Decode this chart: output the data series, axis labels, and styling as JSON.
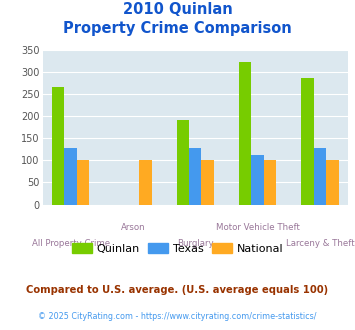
{
  "title_line1": "2010 Quinlan",
  "title_line2": "Property Crime Comparison",
  "categories": [
    "All Property Crime",
    "Arson",
    "Burglary",
    "Motor Vehicle Theft",
    "Larceny & Theft"
  ],
  "series": {
    "Quinlan": [
      265,
      0,
      192,
      322,
      285
    ],
    "Texas": [
      128,
      0,
      128,
      113,
      128
    ],
    "National": [
      100,
      100,
      100,
      100,
      100
    ]
  },
  "colors": {
    "Quinlan": "#77cc00",
    "Texas": "#4499ee",
    "National": "#ffaa22"
  },
  "ylim": [
    0,
    350
  ],
  "yticks": [
    0,
    50,
    100,
    150,
    200,
    250,
    300,
    350
  ],
  "plot_bg_color": "#dce8ef",
  "title_color": "#1155cc",
  "xlabel_color": "#997799",
  "footnote1": "Compared to U.S. average. (U.S. average equals 100)",
  "footnote2": "© 2025 CityRating.com - https://www.cityrating.com/crime-statistics/",
  "footnote1_color": "#993300",
  "footnote2_color": "#4499ee"
}
